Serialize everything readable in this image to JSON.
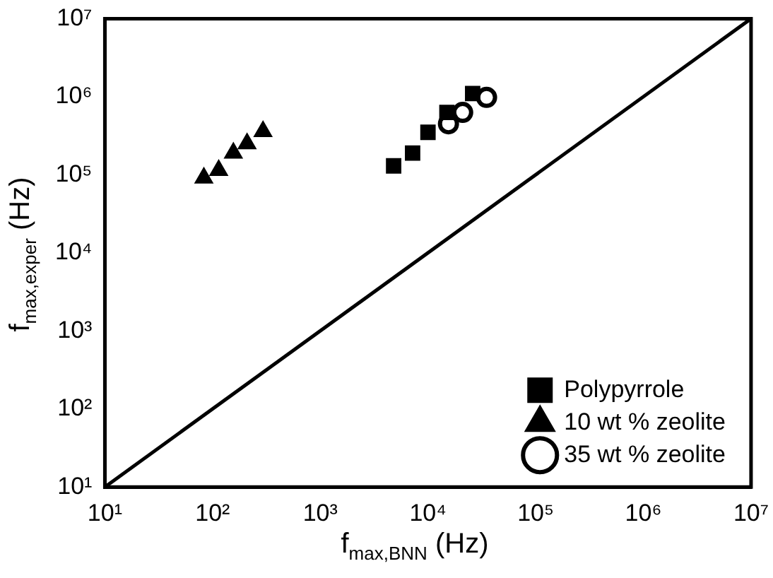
{
  "chart_data": {
    "type": "scatter",
    "xlabel": "f$_{max,BNN}$ (Hz)",
    "ylabel": "f$_{max,exper}$ (Hz)",
    "log": "xy",
    "legend": "bottom right",
    "grid": false,
    "xlim": [
      10,
      10000000
    ],
    "ylim": [
      10,
      10000000
    ],
    "xticks": [
      {
        "value": 10,
        "label": "10¹"
      },
      {
        "value": 100,
        "label": "10²"
      },
      {
        "value": 1000,
        "label": "10³"
      },
      {
        "value": 10000,
        "label": "10⁴"
      },
      {
        "value": 100000,
        "label": "10⁵"
      },
      {
        "value": 1000000,
        "label": "10⁶"
      },
      {
        "value": 10000000,
        "label": "10⁷"
      }
    ],
    "yticks": [
      {
        "value": 10,
        "label": "10¹"
      },
      {
        "value": 100,
        "label": "10²"
      },
      {
        "value": 1000,
        "label": "10³"
      },
      {
        "value": 10000,
        "label": "10⁴"
      },
      {
        "value": 100000,
        "label": "10⁵"
      },
      {
        "value": 1000000,
        "label": "10⁶"
      },
      {
        "value": 10000000,
        "label": "10⁷"
      }
    ],
    "series": [
      {
        "name": "Polypyrrole",
        "color": "#000000",
        "marker": "square",
        "x": [
          4800,
          7200,
          10000,
          15000,
          26000
        ],
        "values": [
          130000,
          190000,
          350000,
          630000,
          1100000
        ]
      },
      {
        "name": "10 wt % zeolite",
        "color": "#000000",
        "marker": "triangle",
        "x": [
          83,
          114,
          156,
          209,
          294
        ],
        "values": [
          91000,
          114000,
          190000,
          250000,
          360000
        ]
      },
      {
        "name": "35 wt % zeolite",
        "color": "#000000",
        "marker": "circle",
        "x": [
          15500,
          21000,
          35000
        ],
        "values": [
          450000,
          630000,
          980000
        ]
      },
      {
        "type": "line",
        "color": "#000000",
        "marker": "none",
        "x": [
          10,
          10000000
        ],
        "values": [
          10,
          10000000
        ]
      }
    ]
  }
}
